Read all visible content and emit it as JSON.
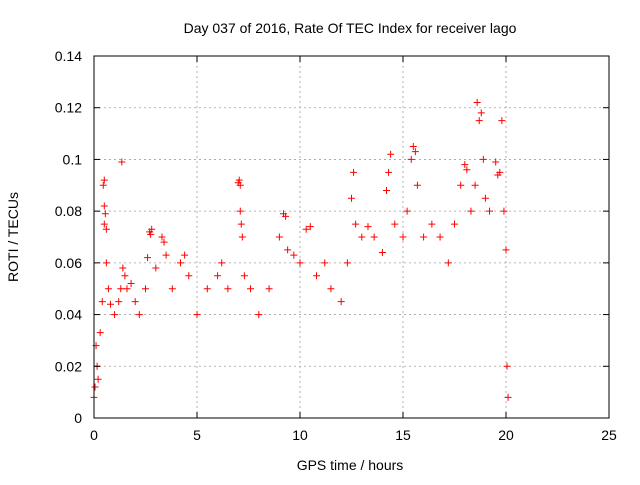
{
  "chart_data": {
    "type": "scatter",
    "title": "Day 037 of 2016, Rate Of TEC Index for receiver lago",
    "xlabel": "GPS time / hours",
    "ylabel": "ROTI / TECUs",
    "xlim": [
      0,
      25
    ],
    "ylim": [
      0,
      0.14
    ],
    "x_ticks": [
      0,
      5,
      10,
      15,
      20,
      25
    ],
    "x_tick_labels": [
      "0",
      "5",
      "10",
      "15",
      "20",
      "25"
    ],
    "y_ticks": [
      0,
      0.02,
      0.04,
      0.06,
      0.08,
      0.1,
      0.12,
      0.14
    ],
    "y_tick_labels": [
      "0",
      "0.02",
      "0.04",
      "0.06",
      "0.08",
      "0.1",
      "0.12",
      "0.14"
    ],
    "grid": true,
    "marker": "plus",
    "color": "#ff0000",
    "series": [
      {
        "points": [
          [
            0.0,
            0.008
          ],
          [
            0.05,
            0.012
          ],
          [
            0.1,
            0.028
          ],
          [
            0.15,
            0.02
          ],
          [
            0.2,
            0.015
          ],
          [
            0.3,
            0.033
          ],
          [
            0.4,
            0.045
          ],
          [
            0.45,
            0.09
          ],
          [
            0.5,
            0.092
          ],
          [
            0.5,
            0.082
          ],
          [
            0.55,
            0.079
          ],
          [
            0.5,
            0.075
          ],
          [
            0.6,
            0.073
          ],
          [
            0.6,
            0.06
          ],
          [
            0.7,
            0.05
          ],
          [
            0.8,
            0.044
          ],
          [
            1.0,
            0.04
          ],
          [
            1.2,
            0.045
          ],
          [
            1.3,
            0.05
          ],
          [
            1.35,
            0.099
          ],
          [
            1.4,
            0.058
          ],
          [
            1.5,
            0.055
          ],
          [
            1.6,
            0.05
          ],
          [
            1.8,
            0.052
          ],
          [
            2.0,
            0.045
          ],
          [
            2.2,
            0.04
          ],
          [
            2.5,
            0.05
          ],
          [
            2.6,
            0.062
          ],
          [
            2.7,
            0.072
          ],
          [
            2.75,
            0.071
          ],
          [
            2.8,
            0.073
          ],
          [
            3.0,
            0.058
          ],
          [
            3.3,
            0.07
          ],
          [
            3.4,
            0.068
          ],
          [
            3.5,
            0.063
          ],
          [
            3.8,
            0.05
          ],
          [
            4.2,
            0.06
          ],
          [
            4.4,
            0.063
          ],
          [
            4.6,
            0.055
          ],
          [
            5.0,
            0.04
          ],
          [
            5.5,
            0.05
          ],
          [
            6.0,
            0.055
          ],
          [
            6.2,
            0.06
          ],
          [
            6.5,
            0.05
          ],
          [
            7.0,
            0.091
          ],
          [
            7.05,
            0.092
          ],
          [
            7.1,
            0.09
          ],
          [
            7.1,
            0.08
          ],
          [
            7.15,
            0.075
          ],
          [
            7.2,
            0.07
          ],
          [
            7.3,
            0.055
          ],
          [
            7.6,
            0.05
          ],
          [
            8.0,
            0.04
          ],
          [
            8.5,
            0.05
          ],
          [
            9.0,
            0.07
          ],
          [
            9.2,
            0.079
          ],
          [
            9.3,
            0.078
          ],
          [
            9.4,
            0.065
          ],
          [
            9.7,
            0.063
          ],
          [
            10.0,
            0.06
          ],
          [
            10.3,
            0.073
          ],
          [
            10.5,
            0.074
          ],
          [
            10.8,
            0.055
          ],
          [
            11.2,
            0.06
          ],
          [
            11.5,
            0.05
          ],
          [
            12.0,
            0.045
          ],
          [
            12.3,
            0.06
          ],
          [
            12.5,
            0.085
          ],
          [
            12.6,
            0.095
          ],
          [
            12.7,
            0.075
          ],
          [
            13.0,
            0.07
          ],
          [
            13.3,
            0.074
          ],
          [
            13.6,
            0.07
          ],
          [
            14.0,
            0.064
          ],
          [
            14.2,
            0.088
          ],
          [
            14.3,
            0.095
          ],
          [
            14.4,
            0.102
          ],
          [
            14.6,
            0.075
          ],
          [
            15.0,
            0.07
          ],
          [
            15.2,
            0.08
          ],
          [
            15.4,
            0.1
          ],
          [
            15.5,
            0.105
          ],
          [
            15.6,
            0.103
          ],
          [
            15.7,
            0.09
          ],
          [
            16.0,
            0.07
          ],
          [
            16.4,
            0.075
          ],
          [
            16.8,
            0.07
          ],
          [
            17.2,
            0.06
          ],
          [
            17.5,
            0.075
          ],
          [
            17.8,
            0.09
          ],
          [
            18.0,
            0.098
          ],
          [
            18.1,
            0.096
          ],
          [
            18.3,
            0.08
          ],
          [
            18.5,
            0.09
          ],
          [
            18.6,
            0.122
          ],
          [
            18.7,
            0.115
          ],
          [
            18.8,
            0.118
          ],
          [
            18.9,
            0.1
          ],
          [
            19.0,
            0.085
          ],
          [
            19.2,
            0.08
          ],
          [
            19.5,
            0.099
          ],
          [
            19.6,
            0.094
          ],
          [
            19.7,
            0.095
          ],
          [
            19.8,
            0.115
          ],
          [
            19.9,
            0.08
          ],
          [
            20.0,
            0.065
          ],
          [
            20.05,
            0.02
          ],
          [
            20.1,
            0.008
          ]
        ]
      }
    ]
  }
}
